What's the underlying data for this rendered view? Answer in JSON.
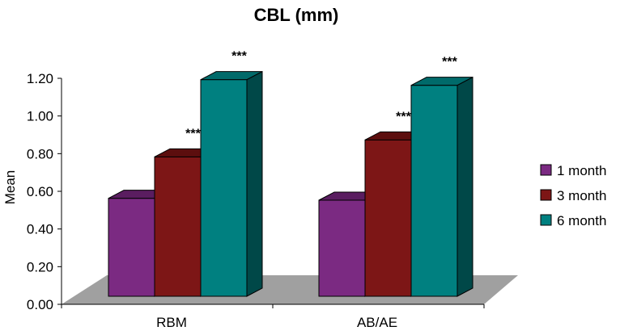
{
  "chart_data": {
    "type": "bar",
    "style": "3d-clustered",
    "title": "CBL (mm)",
    "xlabel": "",
    "ylabel": "Mean",
    "ylim": [
      0,
      1.2
    ],
    "yticks": [
      "0.00",
      "0.20",
      "0.40",
      "0.60",
      "0.80",
      "1.00",
      "1.20"
    ],
    "ytick_values": [
      0,
      0.2,
      0.4,
      0.6,
      0.8,
      1.0,
      1.2
    ],
    "categories": [
      "RBM",
      "AB/AE"
    ],
    "series": [
      {
        "name": "1 month",
        "values": [
          0.52,
          0.51
        ],
        "annotations": [
          "",
          ""
        ]
      },
      {
        "name": "3 month",
        "values": [
          0.74,
          0.83
        ],
        "annotations": [
          "***",
          "***"
        ]
      },
      {
        "name": "6 month",
        "values": [
          1.15,
          1.12
        ],
        "annotations": [
          "***",
          "***"
        ]
      }
    ],
    "legend_position": "right",
    "colors": {
      "series": [
        "#7b2a82",
        "#7d1616",
        "#008080"
      ],
      "series_top": [
        "#5a1d60",
        "#5c0e0e",
        "#006a6a"
      ],
      "series_side": [
        "#4a1650",
        "#4a0b0b",
        "#004848"
      ],
      "floor": "#a0a0a0"
    }
  }
}
